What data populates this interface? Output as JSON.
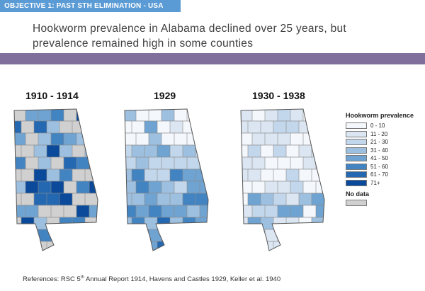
{
  "objective_banner": "OBJECTIVE 1: PAST STH ELIMINATION - USA",
  "headline": {
    "line1": "Hookworm prevalence in Alabama declined over 25 years, but",
    "line2": "prevalence remained high in some counties"
  },
  "maps": [
    {
      "title": "1910 - 1914",
      "pattern": "early"
    },
    {
      "title": "1929",
      "pattern": "middle"
    },
    {
      "title": "1930 - 1938",
      "pattern": "late"
    }
  ],
  "legend": {
    "title": "Hookworm prevalence",
    "classes": [
      {
        "label": "0 - 10",
        "color": "#f4f7fb"
      },
      {
        "label": "11 - 20",
        "color": "#dbe6f2"
      },
      {
        "label": "21 - 30",
        "color": "#c3d7ec"
      },
      {
        "label": "31 - 40",
        "color": "#9ec0e0"
      },
      {
        "label": "41 - 50",
        "color": "#6fa3d1"
      },
      {
        "label": "51 - 60",
        "color": "#4284c2"
      },
      {
        "label": "61 - 70",
        "color": "#2468b2"
      },
      {
        "label": "71+",
        "color": "#0b4a9a"
      }
    ],
    "no_data_label": "No data",
    "no_data_color": "#d0d0d0"
  },
  "references": {
    "prefix": "References: RSC 5",
    "superscript": "th",
    "suffix": " Annual Report 1914, Havens and Castles 1929, Keller et al. 1940"
  }
}
